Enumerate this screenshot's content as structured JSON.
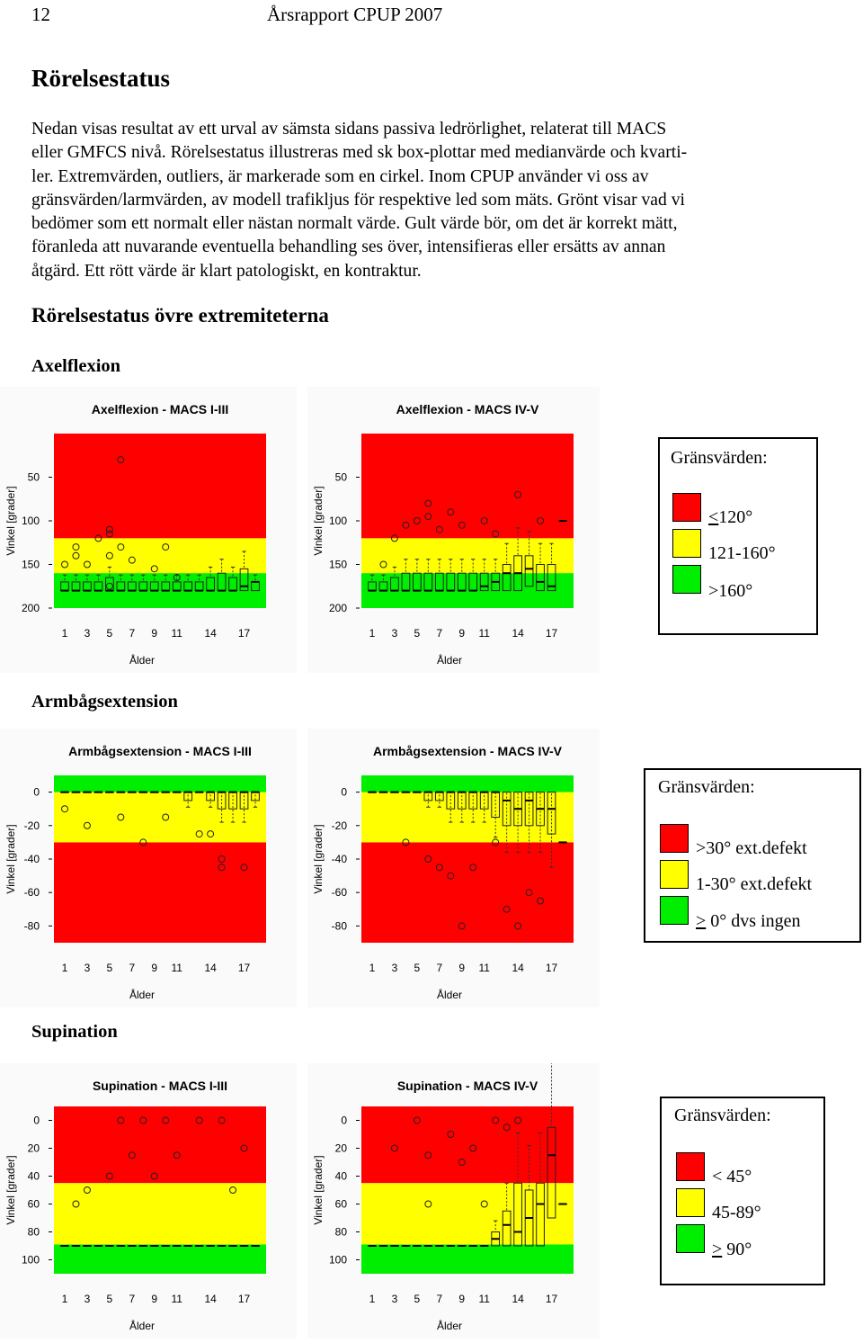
{
  "header": {
    "page_number": "12",
    "title": "Årsrapport CPUP 2007"
  },
  "heading": "Rörelsestatus",
  "intro_lines": [
    "Nedan visas resultat av ett urval av sämsta sidans passiva ledrörlighet, relaterat till MACS",
    "eller GMFCS nivå. Rörelsestatus illustreras med sk box-plottar med medianvärde och kvarti-",
    "ler. Extremvärden, outliers, är markerade som en cirkel. Inom CPUP använder vi oss av",
    "gränsvärden/larmvärden, av modell trafikljus för respektive led som mäts. Grönt visar vad vi",
    "bedömer som ett normalt eller nästan normalt värde. Gult värde bör, om det är korrekt mätt,",
    "föranleda att nuvarande eventuella behandling ses över, intensifieras eller ersätts av annan",
    "åtgärd. Ett rött värde är klart patologiskt, en kontraktur."
  ],
  "subheading": "Rörelsestatus övre extremiteterna",
  "colors": {
    "red": "#ff0000",
    "yellow": "#ffff00",
    "green": "#00ee00"
  },
  "sections": [
    {
      "title": "Axelflexion",
      "legend": {
        "title": "Gränsvärden:",
        "items": [
          {
            "color": "#ff0000",
            "label": "120°",
            "prefix": "<",
            "underline_prefix": true
          },
          {
            "color": "#ffff00",
            "label": "121-160°",
            "prefix": "",
            "underline_prefix": false
          },
          {
            "color": "#00ee00",
            "label": ">160°",
            "prefix": "",
            "underline_prefix": false
          }
        ]
      },
      "charts": [
        {
          "title": "Axelflexion - MACS I-III",
          "ylabel": "Vinkel [grader]",
          "xlabel": "Ålder"
        },
        {
          "title": "Axelflexion  - MACS IV-V",
          "ylabel": "Vinkel [grader]",
          "xlabel": "Ålder"
        }
      ]
    },
    {
      "title": "Armbågsextension",
      "legend": {
        "title": "Gränsvärden:",
        "items": [
          {
            "color": "#ff0000",
            "label": ">30° ext.defekt",
            "prefix": "",
            "underline_prefix": false
          },
          {
            "color": "#ffff00",
            "label": "1-30° ext.defekt",
            "prefix": "",
            "underline_prefix": false
          },
          {
            "color": "#00ee00",
            "label": " 0° dvs ingen",
            "prefix": ">",
            "underline_prefix": true
          }
        ]
      },
      "charts": [
        {
          "title": "Armbågsextension - MACS I-III",
          "ylabel": "Vinkel [grader]",
          "xlabel": "Ålder"
        },
        {
          "title": "Armbågsextension  - MACS IV-V",
          "ylabel": "Vinkel [grader]",
          "xlabel": "Ålder"
        }
      ]
    },
    {
      "title": "Supination",
      "legend": {
        "title": "Gränsvärden:",
        "items": [
          {
            "color": "#ff0000",
            "label": "< 45°",
            "prefix": "",
            "underline_prefix": false
          },
          {
            "color": "#ffff00",
            "label": "45-89°",
            "prefix": "",
            "underline_prefix": false
          },
          {
            "color": "#00ee00",
            "label": " 90°",
            "prefix": ">",
            "underline_prefix": true
          }
        ]
      },
      "charts": [
        {
          "title": "Supination - MACS I-III",
          "ylabel": "Vinkel [grader]",
          "xlabel": "Ålder"
        },
        {
          "title": "Supination  - MACS IV-V",
          "ylabel": "Vinkel [grader]",
          "xlabel": "Ålder"
        }
      ]
    }
  ],
  "chart_data": [
    {
      "type": "box",
      "title": "Axelflexion - MACS I-III",
      "ylabel": "Vinkel [grader]",
      "xlabel": "Ålder",
      "y_reversed": true,
      "ylim": [
        0,
        200
      ],
      "yticks": [
        50,
        100,
        150,
        200
      ],
      "xticks": [
        "1",
        "3",
        "5",
        "7",
        "9",
        "11",
        "14",
        "17"
      ],
      "ages": [
        1,
        18
      ],
      "zones": [
        {
          "from": 0,
          "to": 120,
          "color": "red"
        },
        {
          "from": 120,
          "to": 160,
          "color": "yellow"
        },
        {
          "from": 160,
          "to": 200,
          "color": "green"
        }
      ],
      "medians": [
        180,
        180,
        180,
        180,
        180,
        180,
        180,
        180,
        180,
        180,
        180,
        180,
        180,
        180,
        180,
        180,
        175,
        170
      ],
      "q1": [
        170,
        170,
        170,
        170,
        165,
        170,
        170,
        170,
        170,
        170,
        170,
        170,
        170,
        165,
        160,
        165,
        155,
        170
      ],
      "q3": [
        180,
        180,
        180,
        180,
        180,
        180,
        180,
        180,
        180,
        180,
        180,
        180,
        180,
        180,
        180,
        180,
        180,
        180
      ],
      "outliers": [
        [
          1,
          150
        ],
        [
          2,
          130
        ],
        [
          2,
          140
        ],
        [
          3,
          150
        ],
        [
          4,
          120
        ],
        [
          5,
          115
        ],
        [
          5,
          140
        ],
        [
          6,
          30
        ],
        [
          6,
          130
        ],
        [
          7,
          145
        ],
        [
          9,
          155
        ],
        [
          10,
          130
        ],
        [
          11,
          165
        ],
        [
          5,
          175
        ],
        [
          5,
          110
        ]
      ]
    },
    {
      "type": "box",
      "title": "Axelflexion  - MACS IV-V",
      "ylabel": "Vinkel [grader]",
      "xlabel": "Ålder",
      "y_reversed": true,
      "ylim": [
        0,
        200
      ],
      "yticks": [
        50,
        100,
        150,
        200
      ],
      "xticks": [
        "1",
        "3",
        "5",
        "7",
        "9",
        "11",
        "14",
        "17"
      ],
      "ages": [
        1,
        18
      ],
      "zones": [
        {
          "from": 0,
          "to": 120,
          "color": "red"
        },
        {
          "from": 120,
          "to": 160,
          "color": "yellow"
        },
        {
          "from": 160,
          "to": 200,
          "color": "green"
        }
      ],
      "medians": [
        180,
        180,
        180,
        180,
        180,
        180,
        180,
        180,
        180,
        180,
        175,
        170,
        160,
        160,
        155,
        170,
        175,
        100
      ],
      "q1": [
        170,
        170,
        165,
        160,
        160,
        160,
        160,
        160,
        160,
        160,
        160,
        160,
        150,
        140,
        140,
        150,
        150,
        100
      ],
      "q3": [
        180,
        180,
        180,
        180,
        180,
        180,
        180,
        180,
        180,
        180,
        180,
        180,
        180,
        180,
        175,
        180,
        180,
        100
      ],
      "outliers": [
        [
          2,
          150
        ],
        [
          3,
          120
        ],
        [
          4,
          105
        ],
        [
          5,
          100
        ],
        [
          6,
          95
        ],
        [
          7,
          110
        ],
        [
          8,
          90
        ],
        [
          9,
          105
        ],
        [
          11,
          100
        ],
        [
          12,
          115
        ],
        [
          14,
          70
        ],
        [
          16,
          100
        ],
        [
          6,
          80
        ]
      ]
    },
    {
      "type": "box",
      "title": "Armbågsextension - MACS I-III",
      "ylabel": "Vinkel [grader]",
      "xlabel": "Ålder",
      "y_reversed": false,
      "ylim": [
        -90,
        10
      ],
      "yticks": [
        -80,
        -60,
        -40,
        -20,
        0
      ],
      "xticks": [
        "1",
        "3",
        "5",
        "7",
        "9",
        "11",
        "14",
        "17"
      ],
      "ages": [
        1,
        18
      ],
      "zones": [
        {
          "from": -90,
          "to": -30,
          "color": "red"
        },
        {
          "from": -30,
          "to": 0,
          "color": "yellow"
        },
        {
          "from": 0,
          "to": 10,
          "color": "green"
        }
      ],
      "medians": [
        0,
        0,
        0,
        0,
        0,
        0,
        0,
        0,
        0,
        0,
        0,
        0,
        0,
        0,
        0,
        0,
        0,
        0
      ],
      "q1": [
        0,
        0,
        0,
        0,
        0,
        0,
        0,
        0,
        0,
        0,
        0,
        0,
        0,
        0,
        0,
        0,
        0,
        0
      ],
      "q3": [
        0,
        0,
        0,
        0,
        0,
        0,
        0,
        0,
        0,
        0,
        0,
        -5,
        0,
        -5,
        -10,
        -10,
        -10,
        -5
      ],
      "outliers": [
        [
          1,
          -10
        ],
        [
          3,
          -20
        ],
        [
          6,
          -15
        ],
        [
          8,
          -30
        ],
        [
          10,
          -15
        ],
        [
          13,
          -25
        ],
        [
          15,
          -40
        ],
        [
          15,
          -45
        ],
        [
          17,
          -45
        ],
        [
          14,
          -25
        ]
      ]
    },
    {
      "type": "box",
      "title": "Armbågsextension  - MACS IV-V",
      "ylabel": "Vinkel [grader]",
      "xlabel": "Ålder",
      "y_reversed": false,
      "ylim": [
        -90,
        10
      ],
      "yticks": [
        -80,
        -60,
        -40,
        -20,
        0
      ],
      "xticks": [
        "1",
        "3",
        "5",
        "7",
        "9",
        "11",
        "14",
        "17"
      ],
      "ages": [
        1,
        18
      ],
      "zones": [
        {
          "from": -90,
          "to": -30,
          "color": "red"
        },
        {
          "from": -30,
          "to": 0,
          "color": "yellow"
        },
        {
          "from": 0,
          "to": 10,
          "color": "green"
        }
      ],
      "medians": [
        0,
        0,
        0,
        0,
        0,
        0,
        0,
        0,
        0,
        0,
        0,
        0,
        -5,
        -10,
        -5,
        -10,
        -10,
        -30
      ],
      "q1": [
        0,
        0,
        0,
        0,
        0,
        0,
        0,
        0,
        0,
        0,
        0,
        0,
        0,
        0,
        0,
        0,
        0,
        -30
      ],
      "q3": [
        0,
        0,
        0,
        0,
        0,
        -5,
        -5,
        -10,
        -10,
        -10,
        -10,
        -15,
        -20,
        -20,
        -20,
        -20,
        -25,
        -30
      ],
      "outliers": [
        [
          4,
          -30
        ],
        [
          6,
          -40
        ],
        [
          7,
          -45
        ],
        [
          8,
          -50
        ],
        [
          9,
          -80
        ],
        [
          10,
          -45
        ],
        [
          12,
          -30
        ],
        [
          13,
          -70
        ],
        [
          14,
          -80
        ],
        [
          15,
          -60
        ],
        [
          16,
          -65
        ]
      ]
    },
    {
      "type": "box",
      "title": "Supination - MACS I-III",
      "ylabel": "Vinkel [grader]",
      "xlabel": "Ålder",
      "y_reversed": true,
      "ylim": [
        -10,
        110
      ],
      "yticks": [
        0,
        20,
        40,
        60,
        80,
        100
      ],
      "xticks": [
        "1",
        "3",
        "5",
        "7",
        "9",
        "11",
        "14",
        "17"
      ],
      "ages": [
        1,
        18
      ],
      "zones": [
        {
          "from": -10,
          "to": 45,
          "color": "red"
        },
        {
          "from": 45,
          "to": 89,
          "color": "yellow"
        },
        {
          "from": 89,
          "to": 110,
          "color": "green"
        }
      ],
      "medians": [
        90,
        90,
        90,
        90,
        90,
        90,
        90,
        90,
        90,
        90,
        90,
        90,
        90,
        90,
        90,
        90,
        90,
        90
      ],
      "q1": [
        90,
        90,
        90,
        90,
        90,
        90,
        90,
        90,
        90,
        90,
        90,
        90,
        90,
        90,
        90,
        90,
        90,
        90
      ],
      "q3": [
        90,
        90,
        90,
        90,
        90,
        90,
        90,
        90,
        90,
        90,
        90,
        90,
        90,
        90,
        90,
        90,
        90,
        90
      ],
      "outliers": [
        [
          2,
          60
        ],
        [
          3,
          50
        ],
        [
          5,
          40
        ],
        [
          6,
          0
        ],
        [
          7,
          25
        ],
        [
          8,
          0
        ],
        [
          9,
          40
        ],
        [
          10,
          0
        ],
        [
          11,
          25
        ],
        [
          13,
          0
        ],
        [
          15,
          0
        ],
        [
          16,
          50
        ],
        [
          17,
          20
        ]
      ]
    },
    {
      "type": "box",
      "title": "Supination  - MACS IV-V",
      "ylabel": "Vinkel [grader]",
      "xlabel": "Ålder",
      "y_reversed": true,
      "ylim": [
        -10,
        110
      ],
      "yticks": [
        0,
        20,
        40,
        60,
        80,
        100
      ],
      "xticks": [
        "1",
        "3",
        "5",
        "7",
        "9",
        "11",
        "14",
        "17"
      ],
      "ages": [
        1,
        18
      ],
      "zones": [
        {
          "from": -10,
          "to": 45,
          "color": "red"
        },
        {
          "from": 45,
          "to": 89,
          "color": "yellow"
        },
        {
          "from": 89,
          "to": 110,
          "color": "green"
        }
      ],
      "medians": [
        90,
        90,
        90,
        90,
        90,
        90,
        90,
        90,
        90,
        90,
        90,
        85,
        75,
        80,
        70,
        60,
        25,
        60
      ],
      "q1": [
        90,
        90,
        90,
        90,
        90,
        90,
        90,
        90,
        90,
        90,
        90,
        80,
        65,
        45,
        50,
        45,
        5,
        60
      ],
      "q3": [
        90,
        90,
        90,
        90,
        90,
        90,
        90,
        90,
        90,
        90,
        90,
        90,
        90,
        90,
        90,
        90,
        70,
        60
      ],
      "outliers": [
        [
          3,
          20
        ],
        [
          5,
          0
        ],
        [
          6,
          25
        ],
        [
          8,
          10
        ],
        [
          9,
          30
        ],
        [
          10,
          20
        ],
        [
          12,
          0
        ],
        [
          13,
          5
        ],
        [
          14,
          0
        ],
        [
          11,
          60
        ],
        [
          6,
          60
        ]
      ]
    }
  ]
}
